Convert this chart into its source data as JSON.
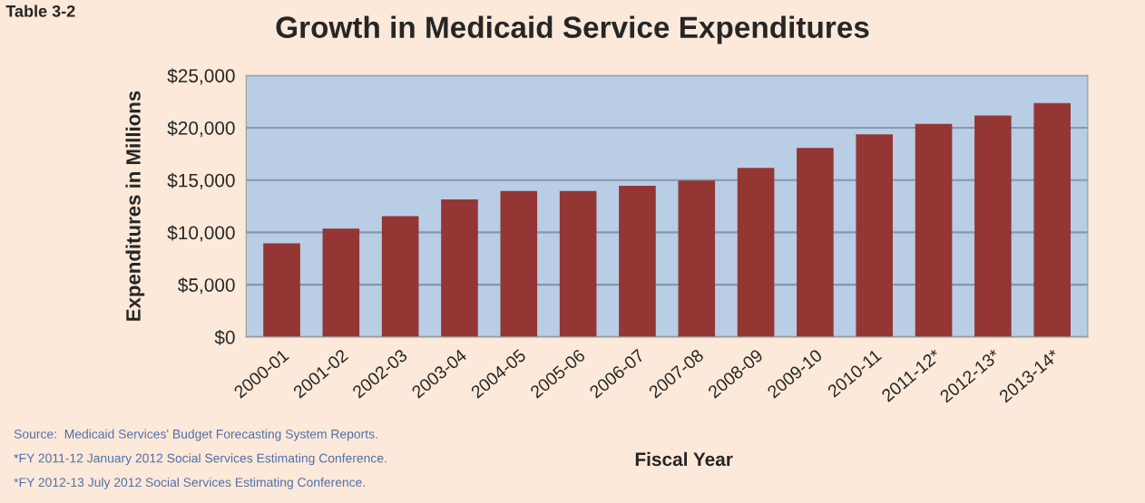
{
  "chart_data": {
    "type": "bar",
    "title": "Growth in Medicaid Service Expenditures",
    "xlabel": "Fiscal Year",
    "ylabel": "Expenditures in Millions",
    "categories": [
      "2000-01",
      "2001-02",
      "2002-03",
      "2003-04",
      "2004-05",
      "2005-06",
      "2006-07",
      "2007-08",
      "2008-09",
      "2009-10",
      "2010-11",
      "2011-12*",
      "2012-13*",
      "2013-14*"
    ],
    "values": [
      8900,
      10300,
      11500,
      13100,
      13900,
      13900,
      14400,
      14900,
      16100,
      18000,
      19300,
      20300,
      21100,
      22300
    ],
    "color": "#943634",
    "ylim": [
      0,
      25000
    ],
    "yticks": [
      {
        "value": 0,
        "label": "$0"
      },
      {
        "value": 5000,
        "label": "$5,000"
      },
      {
        "value": 10000,
        "label": "$10,000"
      },
      {
        "value": 15000,
        "label": "$15,000"
      },
      {
        "value": 20000,
        "label": "$20,000"
      },
      {
        "value": 25000,
        "label": "$25,000"
      }
    ],
    "grid": "y",
    "annotations": [
      "Table 3-2",
      "Source:  Medicaid Services' Budget Forecasting System Reports.",
      "*FY 2011-12 January 2012 Social Services Estimating Conference.",
      "*FY 2012-13 July 2012 Social Services Estimating Conference."
    ]
  }
}
